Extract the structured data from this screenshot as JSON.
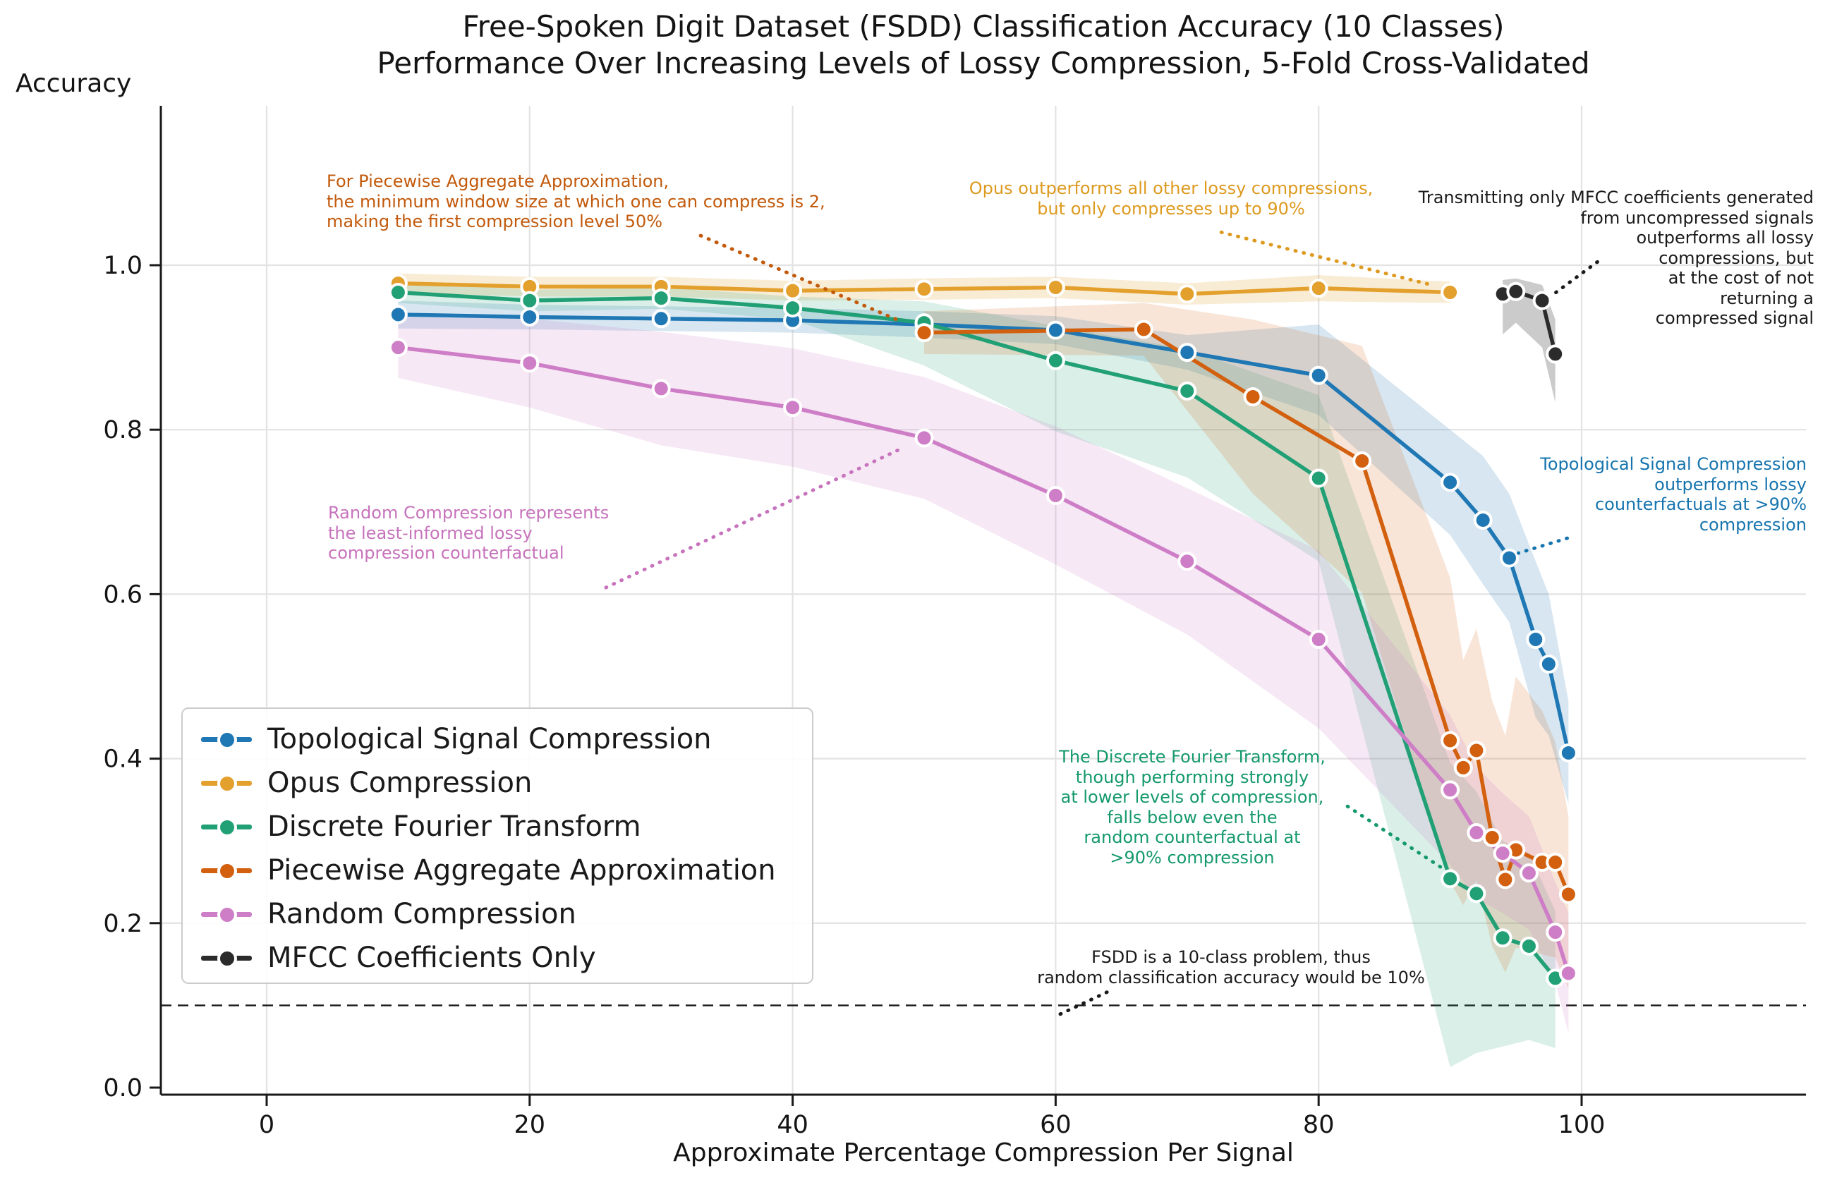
{
  "title": {
    "line1": "Free-Spoken Digit Dataset (FSDD) Classification Accuracy (10 Classes)",
    "line2": "Performance Over Increasing Levels of Lossy Compression, 5-Fold Cross-Validated"
  },
  "axes": {
    "y_label": "Accuracy",
    "x_label": "Approximate Percentage Compression Per Signal"
  },
  "legend": {
    "items": [
      {
        "label": "Topological Signal Compression"
      },
      {
        "label": "Opus Compression"
      },
      {
        "label": "Discrete Fourier Transform"
      },
      {
        "label": "Piecewise Aggregate Approximation"
      },
      {
        "label": "Random Compression"
      },
      {
        "label": "MFCC Coefficients Only"
      }
    ]
  },
  "annotations": {
    "paa": {
      "color": "#c2590b",
      "text": "For Piecewise Aggregate Approximation,\nthe minimum window size at which one can compress is 2,\nmaking the first compression level 50%"
    },
    "opus": {
      "color": "#dd9a1f",
      "text": "Opus outperforms all other lossy compressions,\nbut only compresses up to 90%"
    },
    "mfcc": {
      "color": "#1a1a1a",
      "text": "Transmitting only MFCC coefficients generated\nfrom uncompressed signals\noutperforms all lossy\ncompressions, but\nat the cost of not\nreturning a\ncompressed signal"
    },
    "random": {
      "color": "#c773bc",
      "text": "Random Compression represents\nthe least-informed lossy\ncompression counterfactual"
    },
    "topological": {
      "color": "#1674ae",
      "text": "Topological Signal Compression\noutperforms lossy\ncounterfactuals at >90%\ncompression"
    },
    "dft": {
      "color": "#15996b",
      "text": "The Discrete Fourier Transform,\nthough performing strongly\nat lower levels of compression,\nfalls below even the\nrandom counterfactual at\n>90% compression"
    },
    "baseline": {
      "color": "#1a1a1a",
      "text": "FSDD is a 10-class problem, thus\nrandom classification accuracy would be 10%"
    }
  },
  "chart_data": {
    "type": "line",
    "title": "Free-Spoken Digit Dataset (FSDD) Classification Accuracy (10 Classes) Performance Over Increasing Levels of Lossy Compression, 5-Fold Cross-Validated",
    "xlabel": "Approximate Percentage Compression Per Signal",
    "ylabel": "Accuracy",
    "xlim": [
      -8,
      117
    ],
    "ylim": [
      -0.01,
      1.19
    ],
    "x_ticks": [
      0,
      20,
      40,
      60,
      80,
      100
    ],
    "y_ticks": [
      0.0,
      0.2,
      0.4,
      0.6,
      0.8,
      1.0
    ],
    "grid": true,
    "legend_position": "lower left",
    "baseline": {
      "value": 0.1,
      "style": "dashed",
      "color": "#1a1a1a"
    },
    "series": [
      {
        "name": "Topological Signal Compression",
        "color": "#1f77b4",
        "band_color": "rgba(31,119,180,0.18)",
        "x": [
          10,
          20,
          30,
          40,
          50,
          60,
          70,
          80,
          90,
          92.5,
          94.5,
          96.5,
          97.5,
          99
        ],
        "y": [
          0.94,
          0.937,
          0.935,
          0.933,
          0.928,
          0.921,
          0.894,
          0.866,
          0.736,
          0.69,
          0.644,
          0.545,
          0.515,
          0.407
        ],
        "hi": [
          0.957,
          0.952,
          0.95,
          0.948,
          0.944,
          0.938,
          0.915,
          0.928,
          0.8,
          0.768,
          0.722,
          0.64,
          0.6,
          0.47
        ],
        "lo": [
          0.923,
          0.922,
          0.92,
          0.918,
          0.912,
          0.904,
          0.873,
          0.818,
          0.672,
          0.612,
          0.566,
          0.45,
          0.428,
          0.345
        ]
      },
      {
        "name": "Opus Compression",
        "color": "#e3a02d",
        "band_color": "rgba(227,160,45,0.20)",
        "x": [
          10,
          20,
          30,
          40,
          50,
          60,
          70,
          80,
          90
        ],
        "y": [
          0.978,
          0.974,
          0.974,
          0.969,
          0.971,
          0.973,
          0.965,
          0.972,
          0.967
        ],
        "hi": [
          0.99,
          0.986,
          0.986,
          0.981,
          0.984,
          0.986,
          0.978,
          0.988,
          0.98
        ],
        "lo": [
          0.966,
          0.962,
          0.962,
          0.957,
          0.958,
          0.96,
          0.952,
          0.956,
          0.954
        ]
      },
      {
        "name": "Discrete Fourier Transform",
        "color": "#22a075",
        "band_color": "rgba(34,160,117,0.17)",
        "x": [
          10,
          20,
          30,
          40,
          50,
          60,
          70,
          80,
          90,
          92,
          94,
          96,
          98
        ],
        "y": [
          0.967,
          0.957,
          0.96,
          0.948,
          0.93,
          0.884,
          0.847,
          0.741,
          0.254,
          0.236,
          0.182,
          0.172,
          0.133
        ],
        "hi": [
          0.98,
          0.97,
          0.973,
          0.962,
          0.956,
          0.926,
          0.898,
          0.842,
          0.395,
          0.36,
          0.3,
          0.285,
          0.215
        ],
        "lo": [
          0.954,
          0.944,
          0.947,
          0.934,
          0.878,
          0.798,
          0.742,
          0.64,
          0.025,
          0.042,
          0.05,
          0.058,
          0.048
        ]
      },
      {
        "name": "Piecewise Aggregate Approximation",
        "color": "#d2600e",
        "band_color": "rgba(210,96,14,0.16)",
        "x": [
          50,
          66.7,
          75,
          83.3,
          90,
          91,
          92,
          93.2,
          94.2,
          95,
          97,
          98,
          99
        ],
        "y": [
          0.918,
          0.922,
          0.84,
          0.762,
          0.422,
          0.389,
          0.41,
          0.304,
          0.253,
          0.289,
          0.274,
          0.274,
          0.235
        ],
        "hi": [
          0.944,
          0.954,
          0.934,
          0.902,
          0.62,
          0.52,
          0.558,
          0.47,
          0.428,
          0.5,
          0.458,
          0.42,
          0.33
        ],
        "lo": [
          0.892,
          0.89,
          0.722,
          0.602,
          0.25,
          0.222,
          0.252,
          0.172,
          0.14,
          0.17,
          0.162,
          0.158,
          0.12
        ]
      },
      {
        "name": "Random Compression",
        "color": "#ce7ec6",
        "band_color": "rgba(206,126,198,0.18)",
        "x": [
          10,
          20,
          30,
          40,
          50,
          60,
          70,
          80,
          90,
          92,
          94,
          96,
          98,
          99
        ],
        "y": [
          0.9,
          0.881,
          0.85,
          0.827,
          0.79,
          0.72,
          0.64,
          0.545,
          0.362,
          0.31,
          0.285,
          0.261,
          0.189,
          0.139
        ],
        "hi": [
          0.937,
          0.935,
          0.919,
          0.899,
          0.864,
          0.804,
          0.729,
          0.653,
          0.453,
          0.39,
          0.358,
          0.33,
          0.25,
          0.212
        ],
        "lo": [
          0.863,
          0.827,
          0.781,
          0.755,
          0.716,
          0.636,
          0.551,
          0.437,
          0.271,
          0.23,
          0.212,
          0.192,
          0.128,
          0.066
        ]
      },
      {
        "name": "MFCC Coefficients Only",
        "color": "#2b2b2b",
        "band_color": "rgba(125,125,125,0.40)",
        "x": [
          94,
          95,
          97,
          98
        ],
        "y": [
          0.965,
          0.968,
          0.957,
          0.892
        ],
        "hi": [
          0.982,
          0.984,
          0.976,
          0.934
        ],
        "lo": [
          0.916,
          0.93,
          0.9,
          0.833
        ]
      }
    ],
    "leaders": [
      {
        "name": "paa-leader",
        "color": "#c2590b",
        "from": [
          33.0,
          1.036
        ],
        "to": [
          48.2,
          0.932
        ]
      },
      {
        "name": "opus-leader",
        "color": "#dd9a1f",
        "from": [
          72.6,
          1.04
        ],
        "to": [
          88.6,
          0.976
        ]
      },
      {
        "name": "mfcc-leader",
        "color": "#1a1a1a",
        "from": [
          101.2,
          1.004
        ],
        "to": [
          97.8,
          0.964
        ]
      },
      {
        "name": "random-leader",
        "color": "#c773bc",
        "from": [
          25.8,
          0.608
        ],
        "to": [
          48.0,
          0.775
        ]
      },
      {
        "name": "topological-leader",
        "color": "#1674ae",
        "from": [
          98.9,
          0.668
        ],
        "to": [
          95.2,
          0.65
        ]
      },
      {
        "name": "dft-leader",
        "color": "#15996b",
        "from": [
          82.2,
          0.342
        ],
        "to": [
          89.3,
          0.268
        ]
      },
      {
        "name": "baseline-leader",
        "color": "#1a1a1a",
        "from": [
          63.9,
          0.116
        ],
        "to": [
          60.3,
          0.089
        ]
      }
    ]
  }
}
